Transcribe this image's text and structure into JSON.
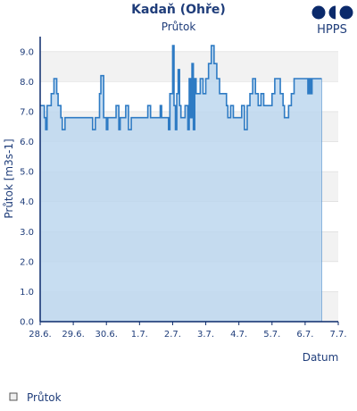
{
  "colors": {
    "text": "#1f3d7a",
    "axis": "#0b2a6b",
    "band": "#f2f2f2",
    "grid": "#d9d9d9",
    "line": "#2e7bc4",
    "fill": "#bdd7ee",
    "logo": "#0b2a6b"
  },
  "brand": {
    "name": "HPPS",
    "logo_icon": "hpps-logo-icon"
  },
  "legend": {
    "label": "Průtok",
    "icon": "legend-square-icon"
  },
  "chart_data": {
    "type": "area",
    "title": "Kadaň (Ohře)",
    "subtitle": "Průtok",
    "xlabel": "Datum",
    "ylabel": "Průtok [m3s-1]",
    "ylim": [
      0,
      9.5
    ],
    "xlim": [
      "2024-06-28",
      "2024-07-07"
    ],
    "y_ticks": [
      0.0,
      1.0,
      2.0,
      3.0,
      4.0,
      5.0,
      6.0,
      7.0,
      8.0,
      9.0
    ],
    "y_tick_labels": [
      "0.0",
      "1.0",
      "2.0",
      "3.0",
      "4.0",
      "5.0",
      "6.0",
      "7.0",
      "8.0",
      "9.0"
    ],
    "x_ticks": [
      "2024-06-28",
      "2024-06-29",
      "2024-06-30",
      "2024-07-01",
      "2024-07-02",
      "2024-07-03",
      "2024-07-04",
      "2024-07-05",
      "2024-07-06",
      "2024-07-07"
    ],
    "x_tick_labels": [
      "28.6.",
      "29.6.",
      "30.6.",
      "1.7.",
      "2.7.",
      "3.7.",
      "4.7.",
      "5.7.",
      "6.7.",
      "7.7."
    ],
    "grid": "horizontal bands",
    "legend_position": "bottom-left",
    "series": [
      {
        "name": "Průtok",
        "points": [
          [
            "2024-06-28 00:00",
            7.2
          ],
          [
            "2024-06-28 03:00",
            6.8
          ],
          [
            "2024-06-28 04:00",
            6.4
          ],
          [
            "2024-06-28 05:00",
            7.2
          ],
          [
            "2024-06-28 08:00",
            7.6
          ],
          [
            "2024-06-28 10:00",
            8.1
          ],
          [
            "2024-06-28 12:00",
            7.6
          ],
          [
            "2024-06-28 13:00",
            7.2
          ],
          [
            "2024-06-28 15:00",
            6.8
          ],
          [
            "2024-06-28 16:00",
            6.4
          ],
          [
            "2024-06-28 18:00",
            6.8
          ],
          [
            "2024-06-29 00:00",
            6.8
          ],
          [
            "2024-06-29 12:00",
            6.8
          ],
          [
            "2024-06-29 14:00",
            6.4
          ],
          [
            "2024-06-29 16:00",
            6.8
          ],
          [
            "2024-06-29 19:00",
            7.6
          ],
          [
            "2024-06-29 20:00",
            8.2
          ],
          [
            "2024-06-29 22:00",
            6.8
          ],
          [
            "2024-06-30 00:00",
            6.4
          ],
          [
            "2024-06-30 01:00",
            6.8
          ],
          [
            "2024-06-30 06:00",
            6.8
          ],
          [
            "2024-06-30 07:00",
            7.2
          ],
          [
            "2024-06-30 09:00",
            6.4
          ],
          [
            "2024-06-30 10:00",
            6.8
          ],
          [
            "2024-06-30 14:00",
            7.2
          ],
          [
            "2024-06-30 16:00",
            6.4
          ],
          [
            "2024-06-30 18:00",
            6.8
          ],
          [
            "2024-07-01 04:00",
            6.8
          ],
          [
            "2024-07-01 06:00",
            7.2
          ],
          [
            "2024-07-01 08:00",
            6.8
          ],
          [
            "2024-07-01 14:00",
            6.8
          ],
          [
            "2024-07-01 15:00",
            7.2
          ],
          [
            "2024-07-01 16:00",
            6.8
          ],
          [
            "2024-07-01 21:00",
            6.4
          ],
          [
            "2024-07-01 22:00",
            7.6
          ],
          [
            "2024-07-02 00:00",
            9.2
          ],
          [
            "2024-07-02 01:00",
            7.2
          ],
          [
            "2024-07-02 02:00",
            6.4
          ],
          [
            "2024-07-02 03:00",
            7.6
          ],
          [
            "2024-07-02 04:00",
            8.4
          ],
          [
            "2024-07-02 05:00",
            7.2
          ],
          [
            "2024-07-02 06:00",
            6.8
          ],
          [
            "2024-07-02 08:00",
            6.8
          ],
          [
            "2024-07-02 09:00",
            7.2
          ],
          [
            "2024-07-02 11:00",
            6.4
          ],
          [
            "2024-07-02 12:00",
            8.1
          ],
          [
            "2024-07-02 13:00",
            6.8
          ],
          [
            "2024-07-02 14:00",
            8.6
          ],
          [
            "2024-07-02 15:00",
            6.4
          ],
          [
            "2024-07-02 16:00",
            8.1
          ],
          [
            "2024-07-02 17:00",
            7.6
          ],
          [
            "2024-07-02 20:00",
            8.1
          ],
          [
            "2024-07-02 22:00",
            7.6
          ],
          [
            "2024-07-03 00:00",
            8.1
          ],
          [
            "2024-07-03 02:00",
            8.6
          ],
          [
            "2024-07-03 04:00",
            9.2
          ],
          [
            "2024-07-03 06:00",
            8.6
          ],
          [
            "2024-07-03 08:00",
            8.1
          ],
          [
            "2024-07-03 10:00",
            7.6
          ],
          [
            "2024-07-03 14:00",
            7.6
          ],
          [
            "2024-07-03 15:00",
            7.2
          ],
          [
            "2024-07-03 16:00",
            6.8
          ],
          [
            "2024-07-03 18:00",
            7.2
          ],
          [
            "2024-07-03 20:00",
            6.8
          ],
          [
            "2024-07-04 00:00",
            6.8
          ],
          [
            "2024-07-04 02:00",
            7.2
          ],
          [
            "2024-07-04 04:00",
            6.4
          ],
          [
            "2024-07-04 06:00",
            7.2
          ],
          [
            "2024-07-04 08:00",
            7.6
          ],
          [
            "2024-07-04 10:00",
            8.1
          ],
          [
            "2024-07-04 12:00",
            7.6
          ],
          [
            "2024-07-04 14:00",
            7.2
          ],
          [
            "2024-07-04 16:00",
            7.6
          ],
          [
            "2024-07-04 18:00",
            7.2
          ],
          [
            "2024-07-04 22:00",
            7.2
          ],
          [
            "2024-07-05 00:00",
            7.6
          ],
          [
            "2024-07-05 02:00",
            8.1
          ],
          [
            "2024-07-05 06:00",
            7.6
          ],
          [
            "2024-07-05 08:00",
            7.2
          ],
          [
            "2024-07-05 09:00",
            6.8
          ],
          [
            "2024-07-05 12:00",
            7.2
          ],
          [
            "2024-07-05 14:00",
            7.6
          ],
          [
            "2024-07-05 16:00",
            8.1
          ],
          [
            "2024-07-06 00:00",
            8.1
          ],
          [
            "2024-07-06 02:00",
            7.6
          ],
          [
            "2024-07-06 03:00",
            8.1
          ],
          [
            "2024-07-06 04:00",
            7.6
          ],
          [
            "2024-07-06 05:00",
            8.1
          ],
          [
            "2024-07-06 12:00",
            8.1
          ]
        ]
      }
    ]
  }
}
